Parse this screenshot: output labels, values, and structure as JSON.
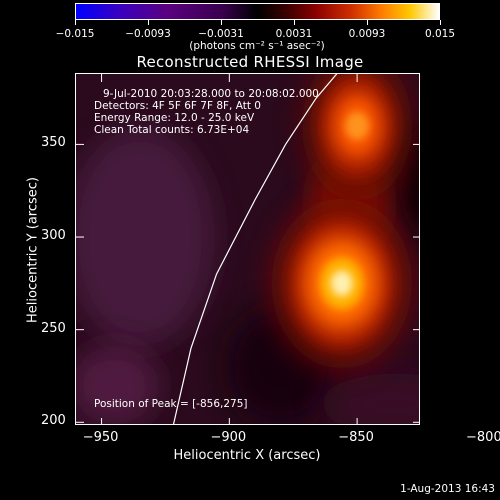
{
  "colorbar": {
    "ticks": [
      "−0.015",
      "−0.0093",
      "−0.0031",
      "0.0031",
      "0.0093",
      "0.015"
    ],
    "units": "(photons cm⁻² s⁻¹ asec⁻²)",
    "colors": [
      "#0000ff",
      "#000000",
      "#ff7a00",
      "#ffffff"
    ]
  },
  "title": "Reconstructed RHESSI Image",
  "info": {
    "time": "9-Jul-2010 20:03:28.000 to 20:08:02.000",
    "detectors": "Detectors: 4F 5F 6F 7F 8F, Att 0",
    "energy": "Energy Range: 12.0 - 25.0 keV",
    "method": "Clean     Total counts: 6.73E+04"
  },
  "peak_text": "Position of Peak = [-856,275]",
  "timestamp": "1-Aug-2013 16:43",
  "chart_data": {
    "type": "heatmap",
    "title": "Reconstructed RHESSI Image",
    "xlabel": "Heliocentric X (arcsec)",
    "ylabel": "Heliocentric Y (arcsec)",
    "xlim": [
      -960,
      -825
    ],
    "ylim": [
      198,
      388
    ],
    "x_ticks": [
      "−950",
      "−900",
      "−850",
      "−800"
    ],
    "x_tick_values": [
      -950,
      -900,
      -850,
      -800
    ],
    "y_ticks": [
      "200",
      "250",
      "300",
      "350"
    ],
    "y_tick_values": [
      200,
      250,
      300,
      350
    ],
    "colorbar_range": [
      -0.015,
      0.015
    ],
    "sources": [
      {
        "x": -856,
        "y": 275,
        "peak": 0.015
      },
      {
        "x": -850,
        "y": 360,
        "peak": 0.0085
      }
    ],
    "limb_curve": [
      [
        -922,
        198
      ],
      [
        -915,
        240
      ],
      [
        -905,
        280
      ],
      [
        -890,
        320
      ],
      [
        -878,
        350
      ],
      [
        -866,
        375
      ],
      [
        -858,
        388
      ]
    ]
  }
}
